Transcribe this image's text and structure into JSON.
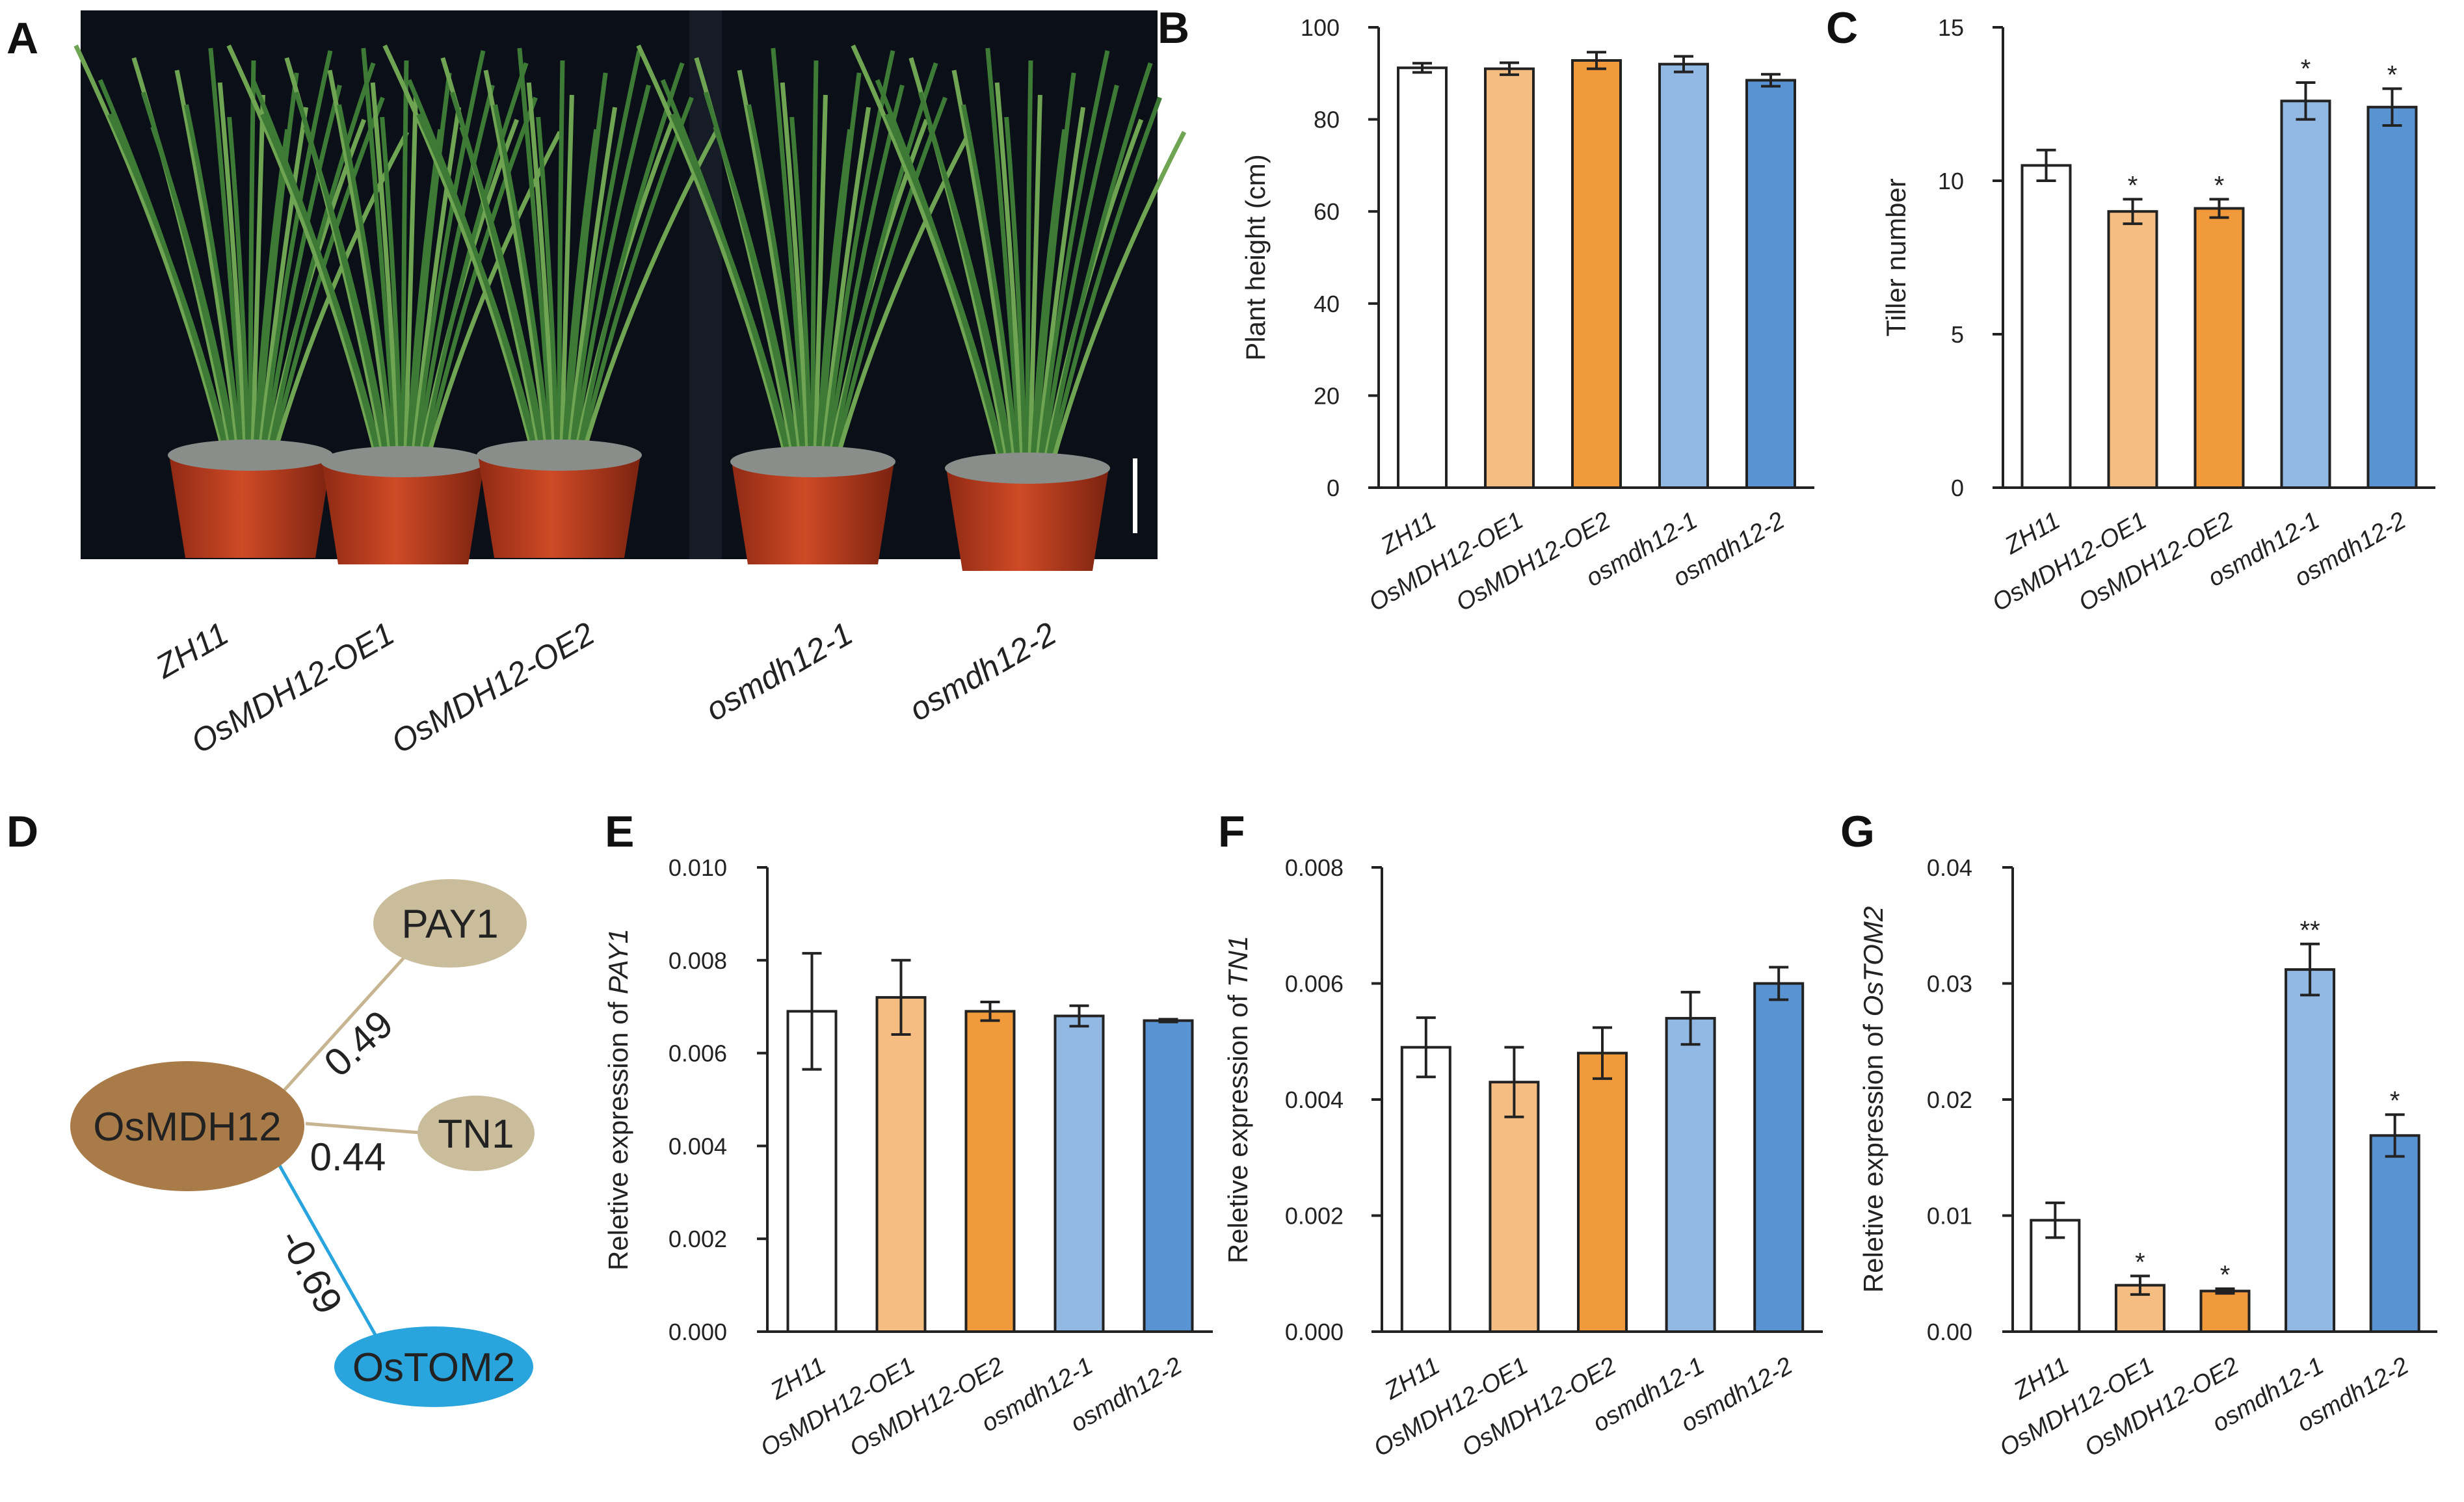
{
  "panel_labels": [
    "A",
    "B",
    "C",
    "D",
    "E",
    "F",
    "G"
  ],
  "categories": [
    "ZH11",
    "OsMDH12-OE1",
    "OsMDH12-OE2",
    "osmdh12-1",
    "osmdh12-2"
  ],
  "colors": {
    "bars": [
      "#ffffff",
      "#f6bd83",
      "#f09a3c",
      "#92b8e4",
      "#5a93d2"
    ],
    "pay1": "#c9bd9c",
    "osmdh12": "#a97b48",
    "tn1": "#c9bd9c",
    "ostom2": "#29a4dd",
    "edge_pos": "#c7b592",
    "edge_neg": "#29a4dd"
  },
  "photo_labels": [
    "ZH11",
    "OsMDH12-OE1",
    "OsMDH12-OE2",
    "osmdh12-1",
    "osmdh12-2"
  ],
  "network": {
    "nodes": [
      "PAY1",
      "OsMDH12",
      "TN1",
      "OsTOM2"
    ],
    "edges": [
      {
        "from": "OsMDH12",
        "to": "PAY1",
        "label": "0.49"
      },
      {
        "from": "OsMDH12",
        "to": "TN1",
        "label": "0.44"
      },
      {
        "from": "OsMDH12",
        "to": "OsTOM2",
        "label": "-0.69"
      }
    ]
  },
  "chart_data": [
    {
      "id": "B",
      "type": "bar",
      "ylabel": "Plant height (cm)",
      "ylim": [
        0,
        100
      ],
      "ticks": [
        "0",
        "20",
        "40",
        "60",
        "80",
        "100"
      ],
      "values": [
        91.2,
        91.0,
        92.8,
        92.0,
        88.5
      ],
      "errors": [
        1.0,
        1.3,
        1.8,
        1.7,
        1.3
      ],
      "stars": [
        "",
        "",
        "",
        "",
        ""
      ]
    },
    {
      "id": "C",
      "type": "bar",
      "ylabel": "Tiller number",
      "ylim": [
        0,
        15
      ],
      "ticks": [
        "0",
        "5",
        "10",
        "15"
      ],
      "values": [
        10.5,
        9.0,
        9.1,
        12.6,
        12.4
      ],
      "errors": [
        0.5,
        0.4,
        0.3,
        0.6,
        0.6
      ],
      "stars": [
        "",
        "*",
        "*",
        "*",
        "*"
      ]
    },
    {
      "id": "E",
      "type": "bar",
      "ylabel_prefix": "Reletive expression of ",
      "ylabel_gene": "PAY1",
      "ylim": [
        0,
        0.01
      ],
      "ticks": [
        "0.000",
        "0.002",
        "0.004",
        "0.006",
        "0.008",
        "0.010"
      ],
      "values": [
        0.0069,
        0.0072,
        0.0069,
        0.0068,
        0.0067
      ],
      "errors": [
        0.00125,
        0.0008,
        0.0002,
        0.00022,
        3e-05
      ],
      "stars": [
        "",
        "",
        "",
        "",
        ""
      ]
    },
    {
      "id": "F",
      "type": "bar",
      "ylabel_prefix": "Reletive expression of ",
      "ylabel_gene": "TN1",
      "ylim": [
        0,
        0.008
      ],
      "ticks": [
        "0.000",
        "0.002",
        "0.004",
        "0.006",
        "0.008"
      ],
      "values": [
        0.0049,
        0.0043,
        0.0048,
        0.0054,
        0.006
      ],
      "errors": [
        0.00051,
        0.0006,
        0.00044,
        0.00045,
        0.00028
      ],
      "stars": [
        "",
        "",
        "",
        "",
        ""
      ]
    },
    {
      "id": "G",
      "type": "bar",
      "ylabel_prefix": "Reletive expression of ",
      "ylabel_gene": "OsTOM2",
      "ylim": [
        0,
        0.04
      ],
      "ticks": [
        "0.00",
        "0.01",
        "0.02",
        "0.03",
        "0.04"
      ],
      "values": [
        0.0096,
        0.004,
        0.0035,
        0.0312,
        0.0169
      ],
      "errors": [
        0.0015,
        0.0008,
        0.0002,
        0.0022,
        0.0018
      ],
      "stars": [
        "",
        "*",
        "*",
        "**",
        "*"
      ]
    }
  ]
}
